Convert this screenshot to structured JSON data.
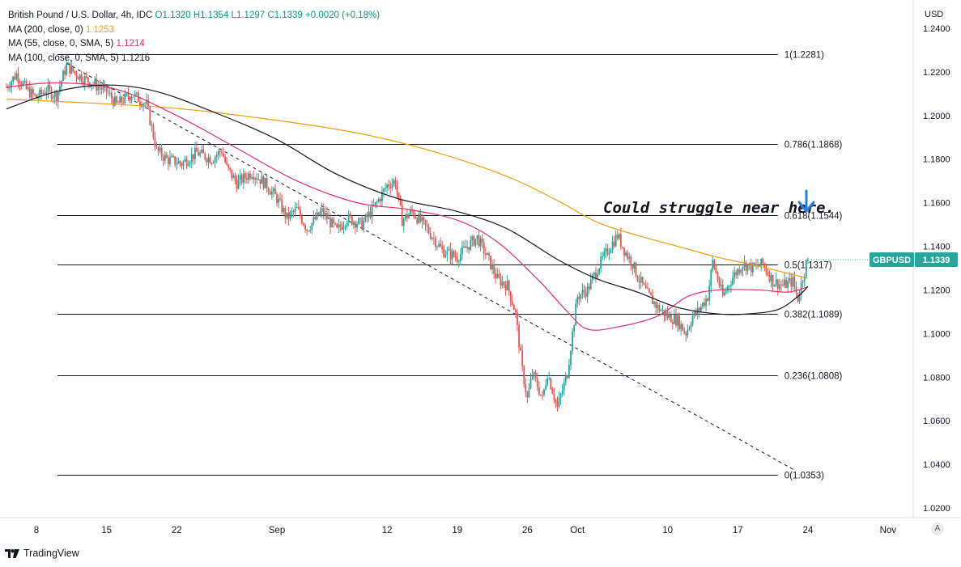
{
  "legend": {
    "title": "British Pound / U.S. Dollar, 4h, IDC",
    "open": "O1.1320",
    "high": "H1.1354",
    "low": "L1.1297",
    "close": "C1.1339",
    "change": "+0.0020 (+0.18%)",
    "ma200_label": "MA (200, close, 0)",
    "ma200_value": "1.1253",
    "ma55_label": "MA (55, close, 0, SMA, 5)",
    "ma55_value": "1.1214",
    "ma100_label": "MA (100, close, 0, SMA, 5)",
    "ma100_value": "1.1216"
  },
  "brand": "TradingView",
  "auto_button": "A",
  "annotation": "Could struggle near here.",
  "price_tag": {
    "symbol": "GBPUSD",
    "value": "1.1339",
    "price": 1.1339
  },
  "colors": {
    "up": "#26a69a",
    "down": "#ef5350",
    "ma200": "#f39c12",
    "ma55": "#e0336b",
    "ma100": "#131722",
    "tag": "#26a69a",
    "arrow": "#2a7de1"
  },
  "chart_data": {
    "type": "candlestick",
    "currency": "USD",
    "ylim": [
      1.016,
      1.244
    ],
    "y_ticks": [
      "1.2400",
      "1.2200",
      "1.2000",
      "1.1800",
      "1.1600",
      "1.1400",
      "1.1200",
      "1.1000",
      "1.0800",
      "1.0600",
      "1.0400",
      "1.0200"
    ],
    "x_ticks": [
      {
        "label": "8",
        "day": 8
      },
      {
        "label": "15",
        "day": 15
      },
      {
        "label": "22",
        "day": 22
      },
      {
        "label": "Sep",
        "day": 32
      },
      {
        "label": "12",
        "day": 43
      },
      {
        "label": "19",
        "day": 50
      },
      {
        "label": "26",
        "day": 57
      },
      {
        "label": "Oct",
        "day": 62
      },
      {
        "label": "10",
        "day": 71
      },
      {
        "label": "17",
        "day": 78
      },
      {
        "label": "24",
        "day": 85
      },
      {
        "label": "Nov",
        "day": 93
      }
    ],
    "xlim_days": [
      4.9,
      94.6
    ],
    "fibonacci": [
      {
        "label": "1(1.2281)",
        "level": 1.2281
      },
      {
        "label": "0.786(1.1868)",
        "level": 1.1868
      },
      {
        "label": "0.618(1.1544)",
        "level": 1.1544
      },
      {
        "label": "0.5(1.1317)",
        "level": 1.1317
      },
      {
        "label": "0.382(1.1089)",
        "level": 1.1089
      },
      {
        "label": "0.236(1.0808)",
        "level": 1.0808
      },
      {
        "label": "0(1.0353)",
        "level": 1.0353
      }
    ],
    "fib_x_days": [
      10.1,
      82.0
    ],
    "trendline": {
      "from": {
        "day": 11.0,
        "price": 1.224
      },
      "to": {
        "day": 83.8,
        "price": 1.037
      }
    },
    "close_path": [
      [
        5.0,
        1.213
      ],
      [
        6.0,
        1.219
      ],
      [
        7.0,
        1.212
      ],
      [
        8.0,
        1.208
      ],
      [
        9.0,
        1.212
      ],
      [
        10.0,
        1.209
      ],
      [
        11.0,
        1.223
      ],
      [
        12.0,
        1.219
      ],
      [
        13.5,
        1.215
      ],
      [
        15.0,
        1.211
      ],
      [
        16.0,
        1.205
      ],
      [
        17.5,
        1.21
      ],
      [
        19.0,
        1.205
      ],
      [
        20.0,
        1.184
      ],
      [
        21.0,
        1.18
      ],
      [
        22.5,
        1.178
      ],
      [
        24.0,
        1.183
      ],
      [
        25.5,
        1.18
      ],
      [
        26.5,
        1.184
      ],
      [
        27.0,
        1.176
      ],
      [
        28.0,
        1.169
      ],
      [
        29.5,
        1.174
      ],
      [
        31.0,
        1.168
      ],
      [
        32.0,
        1.162
      ],
      [
        33.0,
        1.153
      ],
      [
        34.0,
        1.157
      ],
      [
        35.0,
        1.148
      ],
      [
        36.5,
        1.156
      ],
      [
        38.0,
        1.147
      ],
      [
        39.0,
        1.153
      ],
      [
        40.5,
        1.15
      ],
      [
        42.0,
        1.16
      ],
      [
        43.0,
        1.168
      ],
      [
        43.8,
        1.17
      ],
      [
        44.5,
        1.152
      ],
      [
        45.5,
        1.156
      ],
      [
        47.0,
        1.148
      ],
      [
        48.5,
        1.138
      ],
      [
        50.0,
        1.135
      ],
      [
        51.0,
        1.14
      ],
      [
        52.0,
        1.144
      ],
      [
        53.0,
        1.135
      ],
      [
        54.0,
        1.125
      ],
      [
        55.0,
        1.122
      ],
      [
        55.8,
        1.11
      ],
      [
        56.5,
        1.083
      ],
      [
        57.0,
        1.07
      ],
      [
        57.5,
        1.082
      ],
      [
        58.5,
        1.07
      ],
      [
        59.0,
        1.082
      ],
      [
        60.0,
        1.066
      ],
      [
        61.0,
        1.082
      ],
      [
        61.5,
        1.1
      ],
      [
        62.0,
        1.117
      ],
      [
        63.0,
        1.12
      ],
      [
        64.0,
        1.13
      ],
      [
        65.0,
        1.138
      ],
      [
        66.0,
        1.145
      ],
      [
        66.7,
        1.138
      ],
      [
        67.5,
        1.132
      ],
      [
        68.0,
        1.126
      ],
      [
        69.0,
        1.118
      ],
      [
        70.0,
        1.112
      ],
      [
        71.0,
        1.108
      ],
      [
        72.0,
        1.106
      ],
      [
        72.8,
        1.1
      ],
      [
        73.5,
        1.108
      ],
      [
        74.0,
        1.11
      ],
      [
        75.0,
        1.117
      ],
      [
        75.5,
        1.133
      ],
      [
        76.0,
        1.125
      ],
      [
        76.5,
        1.117
      ],
      [
        77.5,
        1.126
      ],
      [
        78.5,
        1.132
      ],
      [
        79.5,
        1.13
      ],
      [
        80.5,
        1.132
      ],
      [
        81.5,
        1.124
      ],
      [
        82.5,
        1.122
      ],
      [
        83.5,
        1.124
      ],
      [
        84.0,
        1.116
      ],
      [
        84.5,
        1.126
      ],
      [
        85.0,
        1.1339
      ]
    ],
    "ma200_path": [
      [
        5.0,
        1.2075
      ],
      [
        20.0,
        1.204
      ],
      [
        30.0,
        1.199
      ],
      [
        40.0,
        1.192
      ],
      [
        48.0,
        1.183
      ],
      [
        55.0,
        1.172
      ],
      [
        60.0,
        1.161
      ],
      [
        64.0,
        1.151
      ],
      [
        68.0,
        1.145
      ],
      [
        72.0,
        1.14
      ],
      [
        76.0,
        1.135
      ],
      [
        80.0,
        1.131
      ],
      [
        85.0,
        1.1253
      ]
    ],
    "ma55_path": [
      [
        5.0,
        1.213
      ],
      [
        10.0,
        1.215
      ],
      [
        16.0,
        1.212
      ],
      [
        22.0,
        1.2
      ],
      [
        28.0,
        1.185
      ],
      [
        34.0,
        1.17
      ],
      [
        40.0,
        1.16
      ],
      [
        45.0,
        1.157
      ],
      [
        50.0,
        1.152
      ],
      [
        54.0,
        1.142
      ],
      [
        58.0,
        1.125
      ],
      [
        61.0,
        1.11
      ],
      [
        63.0,
        1.102
      ],
      [
        66.0,
        1.103
      ],
      [
        70.0,
        1.108
      ],
      [
        73.0,
        1.117
      ],
      [
        76.0,
        1.12
      ],
      [
        80.0,
        1.12
      ],
      [
        83.0,
        1.119
      ],
      [
        85.0,
        1.1214
      ]
    ],
    "ma100_path": [
      [
        5.0,
        1.203
      ],
      [
        10.0,
        1.211
      ],
      [
        15.0,
        1.214
      ],
      [
        20.0,
        1.211
      ],
      [
        26.0,
        1.201
      ],
      [
        32.0,
        1.189
      ],
      [
        38.0,
        1.173
      ],
      [
        44.0,
        1.162
      ],
      [
        50.0,
        1.156
      ],
      [
        55.0,
        1.148
      ],
      [
        60.0,
        1.134
      ],
      [
        64.0,
        1.125
      ],
      [
        68.0,
        1.119
      ],
      [
        72.0,
        1.112
      ],
      [
        76.0,
        1.109
      ],
      [
        79.0,
        1.109
      ],
      [
        82.0,
        1.111
      ],
      [
        84.0,
        1.117
      ],
      [
        85.0,
        1.1216
      ]
    ]
  }
}
